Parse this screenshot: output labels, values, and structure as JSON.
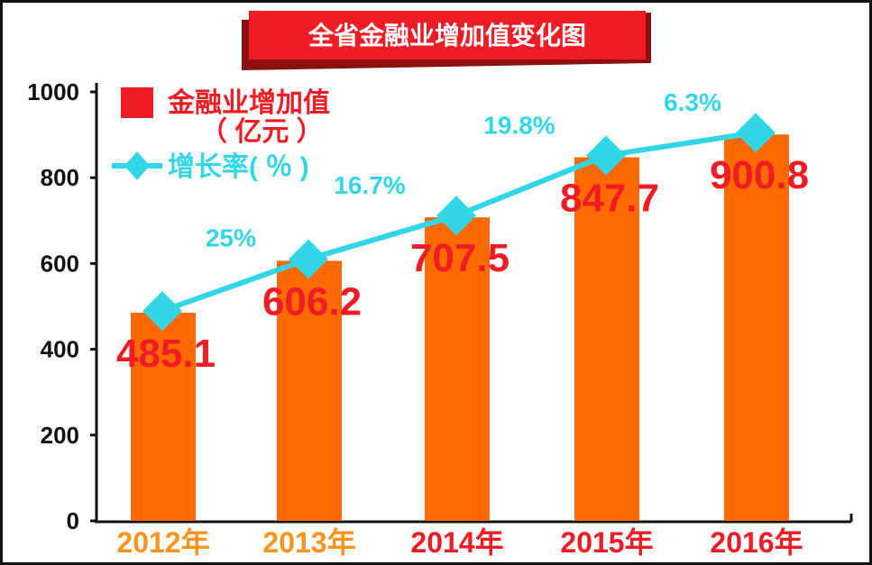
{
  "colors": {
    "bar": "#ff6a00",
    "line": "#33d6e6",
    "value_label": "#ee1c25",
    "title_bg": "#ee1c25",
    "xtick_2012_2013": "#f7941d",
    "xtick_2014_2016": "#ee1c25"
  },
  "chart_data": {
    "type": "bar",
    "title": "全省金融业增加值变化图",
    "categories": [
      "2012年",
      "2013年",
      "2014年",
      "2015年",
      "2016年"
    ],
    "ylim": [
      0,
      1000
    ],
    "yticks": [
      "0",
      "200",
      "400",
      "600",
      "800",
      "1000"
    ],
    "legend_position": "top-left",
    "grid": false,
    "series": [
      {
        "name": "金融业增加值（亿元）",
        "legend_line1": "金融业增加值",
        "legend_line2": "（ 亿元 ）",
        "type": "bar",
        "values": [
          485.1,
          606.2,
          707.5,
          847.7,
          900.8
        ],
        "labels": [
          "485.1",
          "606.2",
          "707.5",
          "847.7",
          "900.8"
        ]
      },
      {
        "name": "增长率(％)",
        "legend_line1": "增长率( ％ )",
        "type": "line",
        "values": [
          null,
          25,
          16.7,
          19.8,
          6.3
        ],
        "labels": [
          "",
          "25%",
          "16.7%",
          "19.8%",
          "6.3%"
        ]
      }
    ]
  }
}
